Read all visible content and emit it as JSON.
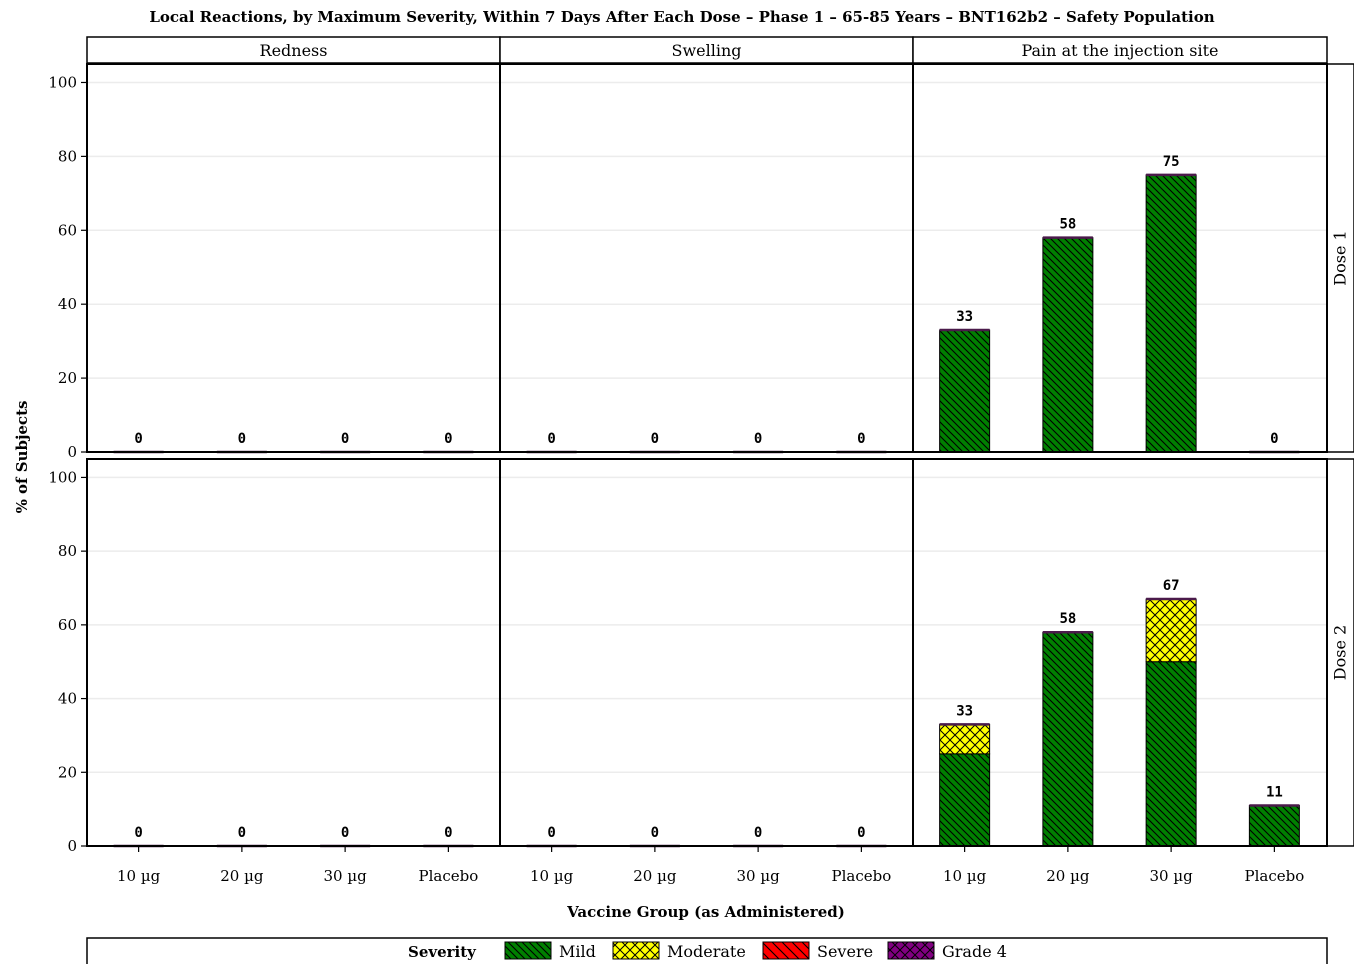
{
  "chart_data": {
    "type": "bar",
    "stacked": true,
    "title": "Local Reactions, by Maximum Severity, Within 7 Days After Each Dose – Phase 1 – 65-85 Years – BNT162b2 – Safety Population",
    "xlabel": "Vaccine Group (as Administered)",
    "ylabel": "% of Subjects",
    "ylim": [
      0,
      105
    ],
    "yticks": [
      0,
      20,
      40,
      60,
      80,
      100
    ],
    "categories": [
      "10 µg",
      "20 µg",
      "30 µg",
      "Placebo"
    ],
    "columns": [
      "Redness",
      "Swelling",
      "Pain at the injection site"
    ],
    "rows": [
      "Dose 1",
      "Dose 2"
    ],
    "grid": true,
    "legend_position": "bottom",
    "legend_title": "Severity",
    "severities": [
      {
        "name": "Mild",
        "color": "#007f00",
        "pattern": "diag-dense"
      },
      {
        "name": "Moderate",
        "color": "#ffff00",
        "pattern": "crosshatch"
      },
      {
        "name": "Severe",
        "color": "#ff0000",
        "pattern": "diag-wide"
      },
      {
        "name": "Grade 4",
        "color": "#800080",
        "pattern": "crosshatch"
      }
    ],
    "panels": [
      {
        "row": "Dose 1",
        "column": "Redness",
        "totals": [
          0,
          0,
          0,
          0
        ],
        "series": {
          "Mild": [
            0,
            0,
            0,
            0
          ],
          "Moderate": [
            0,
            0,
            0,
            0
          ],
          "Severe": [
            0,
            0,
            0,
            0
          ],
          "Grade 4": [
            0,
            0,
            0,
            0
          ]
        }
      },
      {
        "row": "Dose 1",
        "column": "Swelling",
        "totals": [
          0,
          0,
          0,
          0
        ],
        "series": {
          "Mild": [
            0,
            0,
            0,
            0
          ],
          "Moderate": [
            0,
            0,
            0,
            0
          ],
          "Severe": [
            0,
            0,
            0,
            0
          ],
          "Grade 4": [
            0,
            0,
            0,
            0
          ]
        }
      },
      {
        "row": "Dose 1",
        "column": "Pain at the injection site",
        "totals": [
          33,
          58,
          75,
          0
        ],
        "series": {
          "Mild": [
            33,
            58,
            75,
            0
          ],
          "Moderate": [
            0,
            0,
            0,
            0
          ],
          "Severe": [
            0,
            0,
            0,
            0
          ],
          "Grade 4": [
            0,
            0,
            0,
            0
          ]
        }
      },
      {
        "row": "Dose 2",
        "column": "Redness",
        "totals": [
          0,
          0,
          0,
          0
        ],
        "series": {
          "Mild": [
            0,
            0,
            0,
            0
          ],
          "Moderate": [
            0,
            0,
            0,
            0
          ],
          "Severe": [
            0,
            0,
            0,
            0
          ],
          "Grade 4": [
            0,
            0,
            0,
            0
          ]
        }
      },
      {
        "row": "Dose 2",
        "column": "Swelling",
        "totals": [
          0,
          0,
          0,
          0
        ],
        "series": {
          "Mild": [
            0,
            0,
            0,
            0
          ],
          "Moderate": [
            0,
            0,
            0,
            0
          ],
          "Severe": [
            0,
            0,
            0,
            0
          ],
          "Grade 4": [
            0,
            0,
            0,
            0
          ]
        }
      },
      {
        "row": "Dose 2",
        "column": "Pain at the injection site",
        "totals": [
          33,
          58,
          67,
          11
        ],
        "series": {
          "Mild": [
            25,
            58,
            50,
            11
          ],
          "Moderate": [
            8,
            0,
            17,
            0
          ],
          "Severe": [
            0,
            0,
            0,
            0
          ],
          "Grade 4": [
            0,
            0,
            0,
            0
          ]
        }
      }
    ]
  }
}
